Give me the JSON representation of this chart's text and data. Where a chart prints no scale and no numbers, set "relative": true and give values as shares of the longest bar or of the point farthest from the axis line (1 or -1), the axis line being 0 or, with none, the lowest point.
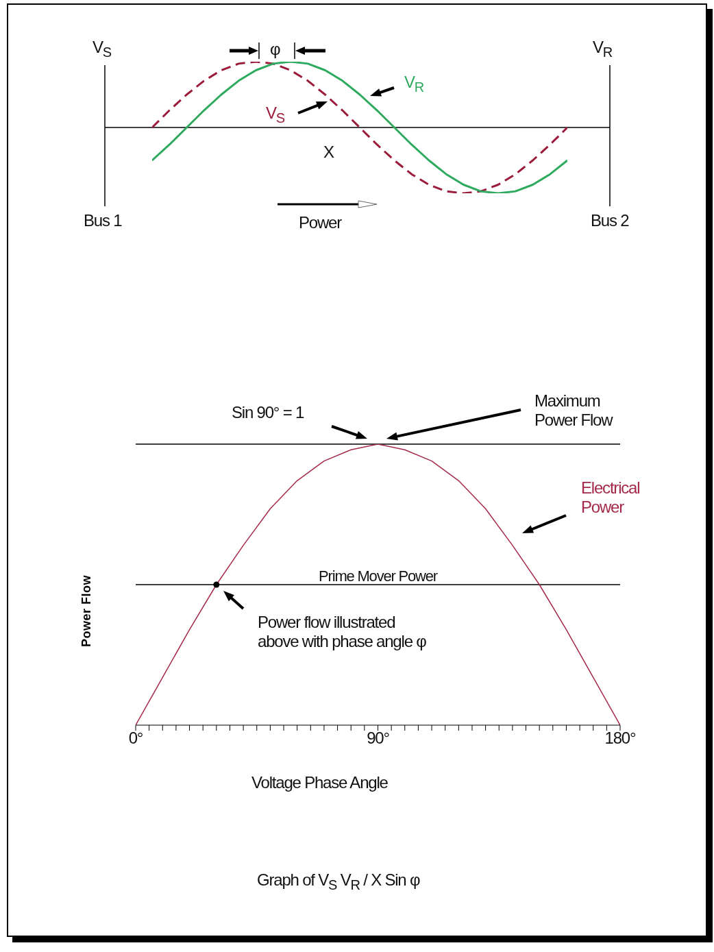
{
  "chart_data": [
    {
      "type": "line",
      "relative": true,
      "categories": [
        null,
        null,
        null,
        null,
        null,
        null,
        null,
        null,
        null,
        null,
        null,
        null,
        null,
        null,
        null,
        null,
        null,
        null,
        null,
        null,
        null,
        null,
        null,
        null,
        null
      ],
      "series": [
        {
          "name": "V$_{S}$",
          "color": "#9b1b3b",
          "line_style": "dashed",
          "values": [
            0,
            0.26,
            0.5,
            0.71,
            0.87,
            0.97,
            1,
            0.97,
            0.87,
            0.71,
            0.5,
            0.26,
            0,
            -0.26,
            -0.5,
            -0.71,
            -0.87,
            -0.97,
            -1,
            -0.97,
            -0.87,
            -0.71,
            -0.5,
            -0.26,
            0
          ]
        },
        {
          "name": "V$_{R}$",
          "color": "#2eaa5e",
          "line_style": "solid",
          "values": [
            -0.5,
            -0.26,
            0,
            0.26,
            0.5,
            0.71,
            0.87,
            0.97,
            1,
            0.97,
            0.87,
            0.71,
            0.5,
            0.26,
            0,
            -0.26,
            -0.5,
            -0.71,
            -0.87,
            -0.97,
            -1,
            -0.97,
            -0.87,
            -0.71,
            -0.5
          ]
        }
      ],
      "annotations": [
        "V$_{S}$",
        "V$_{R}$",
        "φ",
        "X",
        "Bus 1",
        "Bus 2",
        "Power"
      ]
    },
    {
      "type": "line",
      "relative": true,
      "x": [
        0,
        10,
        20,
        30,
        40,
        50,
        60,
        70,
        80,
        90,
        100,
        110,
        120,
        130,
        140,
        150,
        160,
        170,
        180
      ],
      "xlim": [
        0,
        180
      ],
      "xticks": [
        {
          "value": 0,
          "label": "0°"
        },
        {
          "value": 5,
          "label": null
        },
        {
          "value": 10,
          "label": null
        },
        {
          "value": 15,
          "label": null
        },
        {
          "value": 20,
          "label": null
        },
        {
          "value": 25,
          "label": null
        },
        {
          "value": 30,
          "label": null
        },
        {
          "value": 35,
          "label": null
        },
        {
          "value": 40,
          "label": null
        },
        {
          "value": 45,
          "label": null
        },
        {
          "value": 50,
          "label": null
        },
        {
          "value": 55,
          "label": null
        },
        {
          "value": 60,
          "label": null
        },
        {
          "value": 65,
          "label": null
        },
        {
          "value": 70,
          "label": null
        },
        {
          "value": 75,
          "label": null
        },
        {
          "value": 80,
          "label": null
        },
        {
          "value": 85,
          "label": null
        },
        {
          "value": 90,
          "label": "90°"
        },
        {
          "value": 95,
          "label": null
        },
        {
          "value": 100,
          "label": null
        },
        {
          "value": 105,
          "label": null
        },
        {
          "value": 110,
          "label": null
        },
        {
          "value": 115,
          "label": null
        },
        {
          "value": 120,
          "label": null
        },
        {
          "value": 125,
          "label": null
        },
        {
          "value": 130,
          "label": null
        },
        {
          "value": 135,
          "label": null
        },
        {
          "value": 140,
          "label": null
        },
        {
          "value": 145,
          "label": null
        },
        {
          "value": 150,
          "label": null
        },
        {
          "value": 155,
          "label": null
        },
        {
          "value": 160,
          "label": null
        },
        {
          "value": 165,
          "label": null
        },
        {
          "value": 170,
          "label": null
        },
        {
          "value": 175,
          "label": null
        },
        {
          "value": 180,
          "label": "180°"
        }
      ],
      "xlabel": "Voltage Phase Angle",
      "ylabel": "Power Flow",
      "series": [
        {
          "name": "Electrical Power",
          "color": "#a52a4a",
          "values": [
            0,
            0.17,
            0.34,
            0.5,
            0.64,
            0.77,
            0.87,
            0.94,
            0.98,
            1,
            0.98,
            0.94,
            0.87,
            0.77,
            0.64,
            0.5,
            0.34,
            0.17,
            0
          ]
        },
        {
          "type": "scatter",
          "color": "#000000",
          "x": [
            30
          ],
          "values": [
            0.5
          ]
        }
      ],
      "ref_lines": [
        {
          "axis": "y",
          "value": 1,
          "label": null
        },
        {
          "axis": "y",
          "value": 0.5,
          "label": "Prime Mover Power"
        }
      ],
      "annotations": [
        "Sin 90° = 1",
        "Maximum Power Flow",
        "Power flow illustrated above with phase angle φ",
        "Graph of V$_{S}$ V$_{R}$ / X Sin φ"
      ]
    }
  ]
}
